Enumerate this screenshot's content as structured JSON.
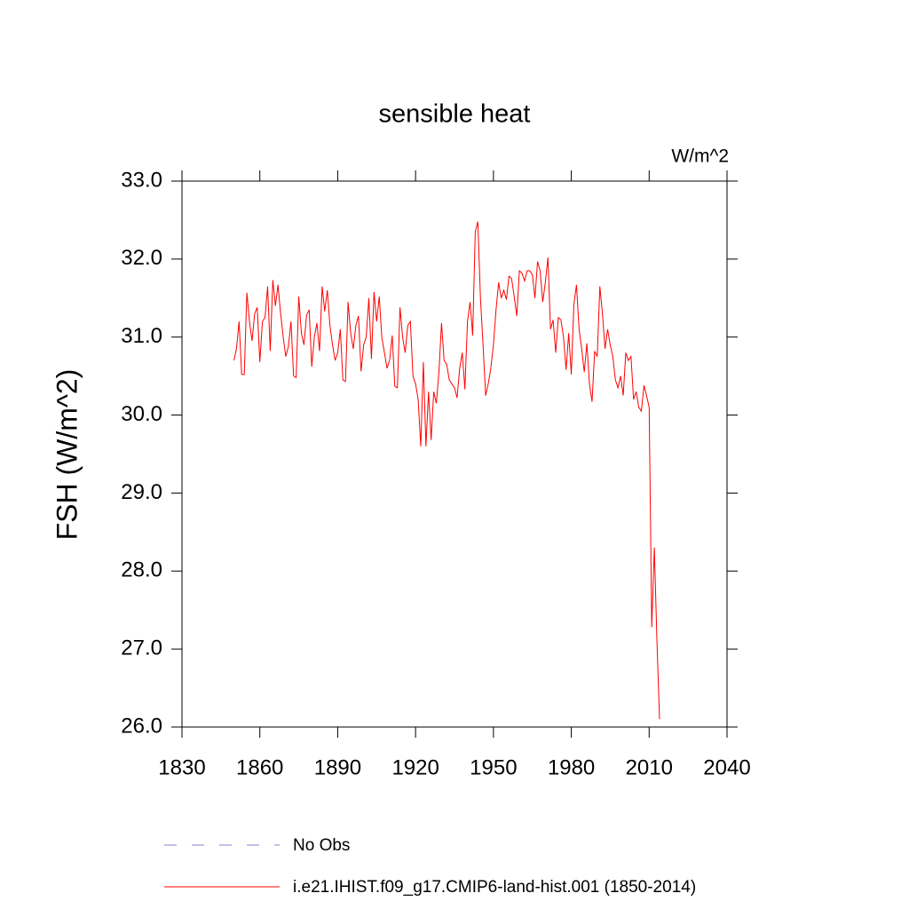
{
  "chart_data": {
    "type": "line",
    "title": "sensible heat",
    "units": "W/m^2",
    "y_label": "FSH  (W/m^2)",
    "xlim": [
      1830,
      2040
    ],
    "xticks": [
      1830,
      1860,
      1890,
      1920,
      1950,
      1980,
      2010,
      2040
    ],
    "ylim": [
      26,
      33
    ],
    "yticks": [
      {
        "value": 26,
        "label": "26.0"
      },
      {
        "value": 27,
        "label": "27.0"
      },
      {
        "value": 28,
        "label": "28.0"
      },
      {
        "value": 29,
        "label": "29.0"
      },
      {
        "value": 30,
        "label": "30.0"
      },
      {
        "value": 31,
        "label": "31.0"
      },
      {
        "value": 32,
        "label": "32.0"
      },
      {
        "value": 33,
        "label": "33.0"
      }
    ],
    "obs": {
      "name": "No Obs",
      "color": "#8080d0",
      "dash": true
    },
    "x": [
      1850,
      1851,
      1852,
      1853,
      1854,
      1855,
      1856,
      1857,
      1858,
      1859,
      1860,
      1861,
      1862,
      1863,
      1864,
      1865,
      1866,
      1867,
      1868,
      1869,
      1870,
      1871,
      1872,
      1873,
      1874,
      1875,
      1876,
      1877,
      1878,
      1879,
      1880,
      1881,
      1882,
      1883,
      1884,
      1885,
      1886,
      1887,
      1888,
      1889,
      1890,
      1891,
      1892,
      1893,
      1894,
      1895,
      1896,
      1897,
      1898,
      1899,
      1900,
      1901,
      1902,
      1903,
      1904,
      1905,
      1906,
      1907,
      1908,
      1909,
      1910,
      1911,
      1912,
      1913,
      1914,
      1915,
      1916,
      1917,
      1918,
      1919,
      1920,
      1921,
      1922,
      1923,
      1924,
      1925,
      1926,
      1927,
      1928,
      1929,
      1930,
      1931,
      1932,
      1933,
      1934,
      1935,
      1936,
      1937,
      1938,
      1939,
      1940,
      1941,
      1942,
      1943,
      1944,
      1945,
      1946,
      1947,
      1948,
      1949,
      1950,
      1951,
      1952,
      1953,
      1954,
      1955,
      1956,
      1957,
      1958,
      1959,
      1960,
      1961,
      1962,
      1963,
      1964,
      1965,
      1966,
      1967,
      1968,
      1969,
      1970,
      1971,
      1972,
      1973,
      1974,
      1975,
      1976,
      1977,
      1978,
      1979,
      1980,
      1981,
      1982,
      1983,
      1984,
      1985,
      1986,
      1987,
      1988,
      1989,
      1990,
      1991,
      1992,
      1993,
      1994,
      1995,
      1996,
      1997,
      1998,
      1999,
      2000,
      2001,
      2002,
      2003,
      2004,
      2005,
      2006,
      2007,
      2008,
      2009,
      2010,
      2011,
      2012,
      2013,
      2014
    ],
    "series": [
      {
        "name": "i.e21.IHIST.f09_g17.CMIP6-land-hist.001 (1850-2014)",
        "color": "#ff0000",
        "values": [
          30.7,
          30.85,
          31.2,
          30.52,
          30.52,
          31.57,
          31.2,
          30.95,
          31.3,
          31.38,
          30.68,
          31.2,
          31.25,
          31.65,
          30.82,
          31.73,
          31.4,
          31.67,
          31.3,
          31.0,
          30.75,
          30.88,
          31.2,
          30.5,
          30.48,
          31.52,
          31.05,
          30.9,
          31.28,
          31.35,
          30.62,
          31.0,
          31.18,
          30.82,
          31.65,
          31.33,
          31.6,
          31.15,
          30.9,
          30.7,
          30.8,
          31.1,
          30.45,
          30.43,
          31.45,
          31.05,
          30.85,
          31.15,
          31.27,
          30.56,
          30.9,
          31.0,
          31.5,
          30.72,
          31.58,
          31.2,
          31.52,
          31.0,
          30.8,
          30.6,
          30.7,
          31.02,
          30.37,
          30.35,
          31.38,
          31.0,
          30.8,
          31.15,
          31.2,
          30.5,
          30.4,
          30.2,
          29.6,
          30.68,
          29.6,
          30.3,
          29.68,
          30.3,
          30.15,
          30.55,
          31.18,
          30.7,
          30.65,
          30.45,
          30.4,
          30.35,
          30.22,
          30.6,
          30.8,
          30.33,
          31.2,
          31.45,
          31.02,
          32.35,
          32.48,
          31.5,
          30.9,
          30.25,
          30.4,
          30.6,
          30.9,
          31.35,
          31.7,
          31.5,
          31.6,
          31.48,
          31.78,
          31.75,
          31.52,
          31.27,
          31.85,
          31.82,
          31.72,
          31.85,
          31.85,
          31.8,
          31.5,
          31.97,
          31.85,
          31.45,
          31.7,
          32.02,
          31.1,
          31.22,
          30.8,
          31.25,
          31.22,
          31.0,
          30.58,
          31.05,
          30.52,
          31.42,
          31.67,
          31.1,
          30.85,
          30.55,
          30.92,
          30.4,
          30.17,
          30.82,
          30.75,
          31.65,
          31.3,
          30.85,
          31.1,
          30.9,
          30.75,
          30.45,
          30.35,
          30.5,
          30.25,
          30.8,
          30.7,
          30.75,
          30.2,
          30.3,
          30.1,
          30.05,
          30.38,
          30.25,
          30.1,
          27.28,
          28.3,
          27.1,
          26.1
        ]
      }
    ]
  }
}
